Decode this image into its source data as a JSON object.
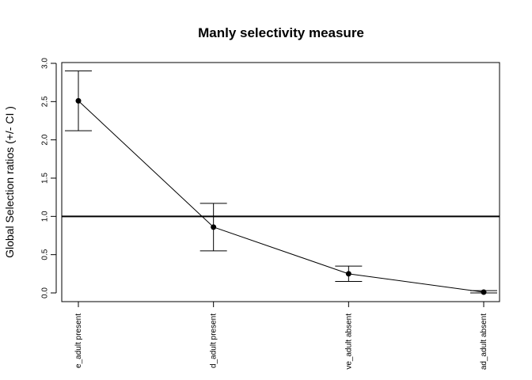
{
  "chart_data": {
    "type": "scatter",
    "title": "Manly selectivity measure",
    "xlabel": "",
    "ylabel": "Global Selection ratios (+/- CI )",
    "categories": [
      "e_adult present",
      "d_adult present",
      "ve_adult absent",
      "ad_adult absent"
    ],
    "values": [
      2.51,
      0.86,
      0.25,
      0.01
    ],
    "ci_lower": [
      2.12,
      0.55,
      0.15,
      0.0
    ],
    "ci_upper": [
      2.9,
      1.17,
      0.35,
      0.03
    ],
    "reference_line": 1.0,
    "ylim": [
      0,
      3
    ],
    "yticks": [
      "0.0",
      "0.5",
      "1.0",
      "1.5",
      "2.0",
      "2.5",
      "3.0"
    ],
    "connected": true,
    "grid": false
  }
}
